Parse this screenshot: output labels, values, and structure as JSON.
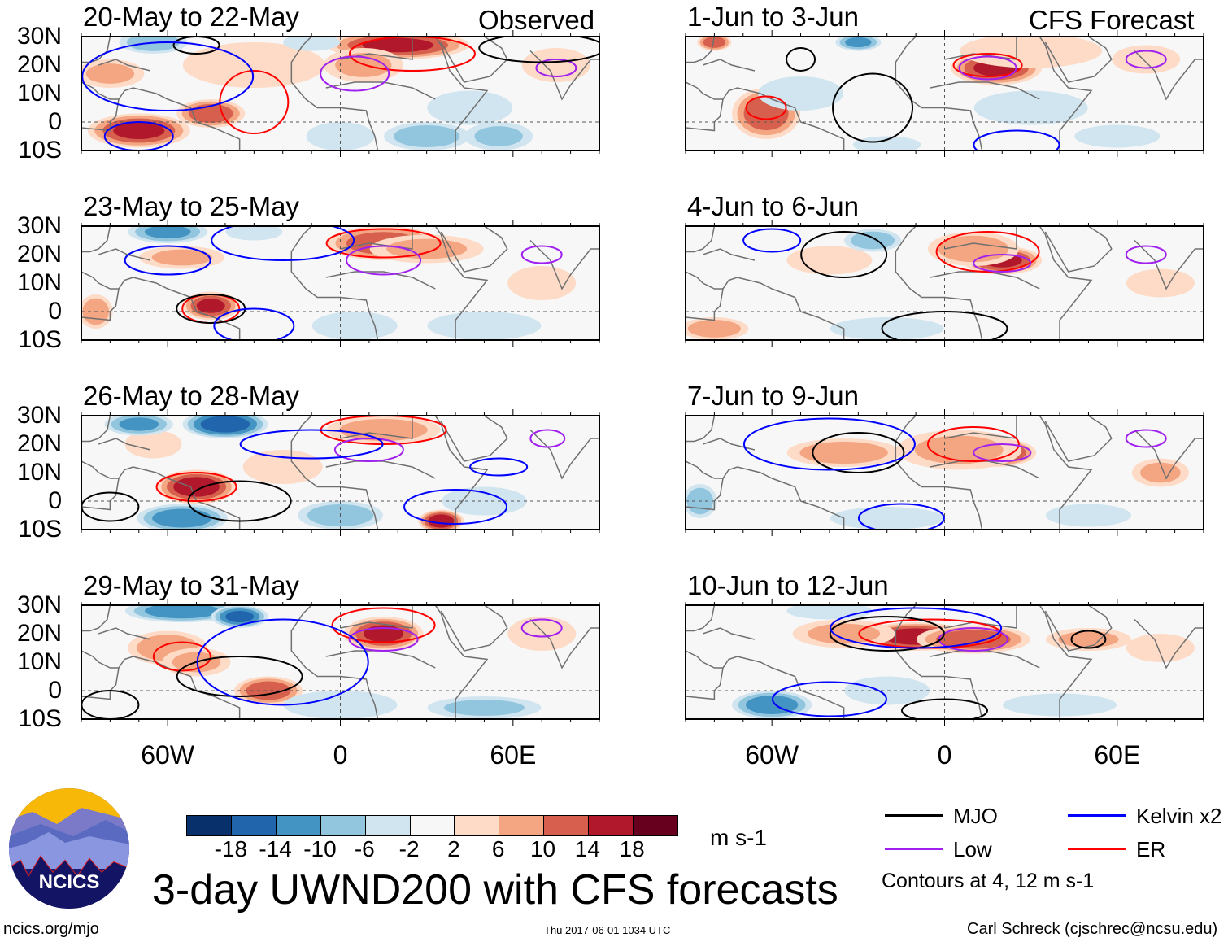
{
  "header": {
    "left_label": "Observed",
    "right_label": "CFS Forecast"
  },
  "chart_data": {
    "type": "heatmap",
    "title": "3-day UWND200 with CFS forecasts",
    "units": "m s-1",
    "lat_labels": [
      "30N",
      "20N",
      "10N",
      "0",
      "10S"
    ],
    "lon_labels": [
      "60W",
      "0",
      "60E"
    ],
    "lon_range": [
      -90,
      90
    ],
    "lat_range": [
      -10,
      30
    ],
    "colorbar": {
      "ticks": [
        "-18",
        "-14",
        "-10",
        "-6",
        "-2",
        "2",
        "6",
        "10",
        "14",
        "18"
      ],
      "levels": [
        -18,
        -14,
        -10,
        -6,
        -2,
        2,
        6,
        10,
        14,
        18
      ],
      "colors": [
        "#08306b",
        "#2166ac",
        "#4393c3",
        "#92c5de",
        "#d1e5f0",
        "#f7f7f7",
        "#fddbc7",
        "#f4a582",
        "#d6604d",
        "#b2182b",
        "#67001f"
      ]
    },
    "legend": [
      {
        "label": "MJO",
        "color": "#000000"
      },
      {
        "label": "Kelvin x2",
        "color": "#0000ff"
      },
      {
        "label": "Low",
        "color": "#a020f0"
      },
      {
        "label": "ER",
        "color": "#ff0000"
      }
    ],
    "contour_note": "Contours at 4, 12 m s-1",
    "panels": [
      {
        "title": "20-May to 22-May",
        "column": "observed",
        "anomalies": [
          [
            -70,
            -3,
            18,
            6,
            16
          ],
          [
            -45,
            3,
            12,
            5,
            14
          ],
          [
            -80,
            17,
            12,
            5,
            8
          ],
          [
            -30,
            20,
            25,
            8,
            4
          ],
          [
            20,
            27,
            25,
            5,
            16
          ],
          [
            8,
            20,
            14,
            6,
            8
          ],
          [
            75,
            20,
            12,
            6,
            6
          ],
          [
            -65,
            28,
            12,
            4,
            -10
          ],
          [
            30,
            -5,
            15,
            5,
            -10
          ],
          [
            55,
            -5,
            12,
            5,
            -8
          ],
          [
            0,
            -5,
            12,
            5,
            -6
          ],
          [
            -10,
            28,
            10,
            3,
            -6
          ],
          [
            45,
            5,
            15,
            6,
            -4
          ]
        ],
        "contours": [
          [
            -30,
            7,
            12,
            11,
            "ER"
          ],
          [
            25,
            24,
            22,
            6,
            "ER"
          ],
          [
            5,
            17,
            12,
            6,
            "Low"
          ],
          [
            75,
            19,
            7,
            3,
            "Low"
          ],
          [
            -50,
            27,
            8,
            3,
            "MJO"
          ],
          [
            70,
            26,
            22,
            5,
            "MJO"
          ],
          [
            -60,
            16,
            30,
            12,
            "Kelvin"
          ],
          [
            -70,
            -5,
            12,
            5,
            "Kelvin"
          ]
        ]
      },
      {
        "title": "1-Jun to 3-Jun",
        "column": "forecast",
        "anomalies": [
          [
            -62,
            3,
            12,
            9,
            14
          ],
          [
            18,
            19,
            16,
            6,
            16
          ],
          [
            -80,
            28,
            6,
            3,
            14
          ],
          [
            30,
            25,
            25,
            6,
            6
          ],
          [
            70,
            22,
            12,
            5,
            4
          ],
          [
            -30,
            28,
            8,
            3,
            -12
          ],
          [
            -50,
            10,
            15,
            6,
            -6
          ],
          [
            30,
            5,
            20,
            6,
            -4
          ],
          [
            60,
            -5,
            15,
            4,
            -4
          ],
          [
            -20,
            -8,
            12,
            3,
            -4
          ]
        ],
        "contours": [
          [
            -62,
            5,
            7,
            4,
            "ER"
          ],
          [
            15,
            20,
            12,
            4,
            "ER"
          ],
          [
            15,
            19,
            10,
            4,
            "Low"
          ],
          [
            70,
            22,
            7,
            3,
            "Low"
          ],
          [
            -50,
            22,
            5,
            4,
            "MJO"
          ],
          [
            -25,
            5,
            14,
            12,
            "MJO"
          ],
          [
            25,
            -8,
            15,
            5,
            "Kelvin"
          ]
        ]
      },
      {
        "title": "23-May to 25-May",
        "column": "observed",
        "anomalies": [
          [
            -45,
            2,
            10,
            5,
            16
          ],
          [
            -55,
            19,
            15,
            4,
            8
          ],
          [
            15,
            24,
            20,
            6,
            14
          ],
          [
            30,
            22,
            20,
            5,
            8
          ],
          [
            -85,
            0,
            6,
            6,
            10
          ],
          [
            -60,
            28,
            14,
            4,
            -12
          ],
          [
            -30,
            28,
            10,
            3,
            -6
          ],
          [
            50,
            -5,
            20,
            5,
            -6
          ],
          [
            5,
            -5,
            15,
            5,
            -4
          ],
          [
            70,
            10,
            12,
            6,
            4
          ]
        ],
        "contours": [
          [
            -45,
            1,
            10,
            5,
            "ER"
          ],
          [
            15,
            24,
            20,
            5,
            "ER"
          ],
          [
            15,
            18,
            13,
            5,
            "Low"
          ],
          [
            70,
            20,
            7,
            3,
            "Low"
          ],
          [
            -45,
            1,
            12,
            5,
            "MJO"
          ],
          [
            -20,
            25,
            25,
            7,
            "Kelvin"
          ],
          [
            -60,
            18,
            15,
            5,
            "Kelvin"
          ],
          [
            -30,
            -5,
            14,
            6,
            "Kelvin"
          ]
        ]
      },
      {
        "title": "4-Jun to 6-Jun",
        "column": "forecast",
        "anomalies": [
          [
            20,
            18,
            14,
            5,
            16
          ],
          [
            10,
            22,
            16,
            6,
            10
          ],
          [
            -40,
            18,
            15,
            5,
            4
          ],
          [
            -25,
            25,
            10,
            4,
            -10
          ],
          [
            -80,
            -6,
            12,
            4,
            10
          ],
          [
            75,
            10,
            12,
            5,
            6
          ],
          [
            -20,
            -6,
            20,
            4,
            -6
          ]
        ],
        "contours": [
          [
            15,
            21,
            18,
            7,
            "ER"
          ],
          [
            20,
            17,
            10,
            3,
            "Low"
          ],
          [
            70,
            20,
            7,
            3,
            "Low"
          ],
          [
            -35,
            20,
            15,
            8,
            "MJO"
          ],
          [
            0,
            -6,
            22,
            6,
            "MJO"
          ],
          [
            -60,
            25,
            10,
            4,
            "Kelvin"
          ]
        ]
      },
      {
        "title": "26-May to 28-May",
        "column": "observed",
        "anomalies": [
          [
            -50,
            5,
            14,
            6,
            18
          ],
          [
            -65,
            20,
            10,
            5,
            6
          ],
          [
            15,
            25,
            20,
            5,
            10
          ],
          [
            35,
            -7,
            8,
            4,
            18
          ],
          [
            -40,
            27,
            15,
            5,
            -18
          ],
          [
            -70,
            27,
            12,
            4,
            -12
          ],
          [
            -55,
            -6,
            16,
            5,
            -14
          ],
          [
            0,
            -5,
            15,
            5,
            -10
          ],
          [
            50,
            0,
            15,
            5,
            -6
          ],
          [
            -20,
            12,
            14,
            6,
            4
          ]
        ],
        "contours": [
          [
            -50,
            5,
            14,
            5,
            "ER"
          ],
          [
            15,
            25,
            22,
            5,
            "ER"
          ],
          [
            10,
            18,
            12,
            4,
            "Low"
          ],
          [
            72,
            22,
            6,
            3,
            "Low"
          ],
          [
            -35,
            0,
            18,
            7,
            "MJO"
          ],
          [
            -80,
            -2,
            10,
            5,
            "MJO"
          ],
          [
            -10,
            20,
            25,
            5,
            "Kelvin"
          ],
          [
            55,
            12,
            10,
            3,
            "Kelvin"
          ],
          [
            40,
            -2,
            18,
            6,
            "Kelvin"
          ]
        ]
      },
      {
        "title": "7-Jun to 9-Jun",
        "column": "forecast",
        "anomalies": [
          [
            18,
            17,
            14,
            5,
            18
          ],
          [
            -35,
            17,
            20,
            5,
            10
          ],
          [
            5,
            18,
            22,
            7,
            8
          ],
          [
            75,
            10,
            10,
            5,
            8
          ],
          [
            -20,
            -6,
            20,
            4,
            -6
          ],
          [
            -85,
            0,
            6,
            6,
            -10
          ],
          [
            50,
            -5,
            15,
            4,
            -4
          ]
        ],
        "contours": [
          [
            10,
            20,
            16,
            6,
            "ER"
          ],
          [
            20,
            17,
            10,
            3,
            "Low"
          ],
          [
            70,
            22,
            7,
            3,
            "Low"
          ],
          [
            -30,
            17,
            16,
            7,
            "MJO"
          ],
          [
            -15,
            -6,
            15,
            5,
            "Kelvin"
          ],
          [
            -40,
            20,
            30,
            9,
            "Kelvin"
          ]
        ]
      },
      {
        "title": "29-May to 31-May",
        "column": "observed",
        "anomalies": [
          [
            15,
            20,
            14,
            6,
            16
          ],
          [
            -60,
            15,
            14,
            6,
            10
          ],
          [
            -25,
            0,
            12,
            5,
            14
          ],
          [
            -50,
            10,
            12,
            5,
            8
          ],
          [
            -55,
            28,
            20,
            4,
            -14
          ],
          [
            -35,
            26,
            10,
            4,
            -16
          ],
          [
            0,
            -5,
            20,
            5,
            -6
          ],
          [
            50,
            -6,
            20,
            4,
            -8
          ],
          [
            70,
            20,
            12,
            6,
            6
          ]
        ],
        "contours": [
          [
            15,
            23,
            18,
            6,
            "ER"
          ],
          [
            -55,
            12,
            10,
            5,
            "ER"
          ],
          [
            15,
            18,
            12,
            4,
            "Low"
          ],
          [
            70,
            22,
            7,
            3,
            "Low"
          ],
          [
            -35,
            5,
            22,
            7,
            "MJO"
          ],
          [
            -80,
            -5,
            10,
            5,
            "MJO"
          ],
          [
            -20,
            10,
            30,
            15,
            "Kelvin"
          ]
        ]
      },
      {
        "title": "10-Jun to 12-Jun",
        "column": "forecast",
        "anomalies": [
          [
            -10,
            19,
            20,
            5,
            18
          ],
          [
            10,
            18,
            20,
            5,
            14
          ],
          [
            -35,
            20,
            18,
            5,
            8
          ],
          [
            50,
            18,
            15,
            4,
            8
          ],
          [
            75,
            15,
            12,
            5,
            4
          ],
          [
            -60,
            -5,
            14,
            5,
            -14
          ],
          [
            -20,
            0,
            15,
            5,
            -6
          ],
          [
            -40,
            28,
            15,
            3,
            -6
          ],
          [
            40,
            -5,
            20,
            4,
            -4
          ]
        ],
        "contours": [
          [
            -5,
            20,
            25,
            5,
            "ER"
          ],
          [
            10,
            18,
            12,
            4,
            "Low"
          ],
          [
            50,
            18,
            6,
            3,
            "MJO"
          ],
          [
            -20,
            20,
            20,
            6,
            "MJO"
          ],
          [
            0,
            -7,
            15,
            4,
            "MJO"
          ],
          [
            -10,
            22,
            30,
            7,
            "Kelvin"
          ],
          [
            -40,
            -3,
            20,
            6,
            "Kelvin"
          ]
        ]
      }
    ]
  },
  "logo": {
    "text": "NCICS"
  },
  "footer": {
    "url": "ncics.org/mjo",
    "timestamp": "Thu 2017-06-01 1034 UTC",
    "author": "Carl Schreck (cjschrec@ncsu.edu)"
  }
}
